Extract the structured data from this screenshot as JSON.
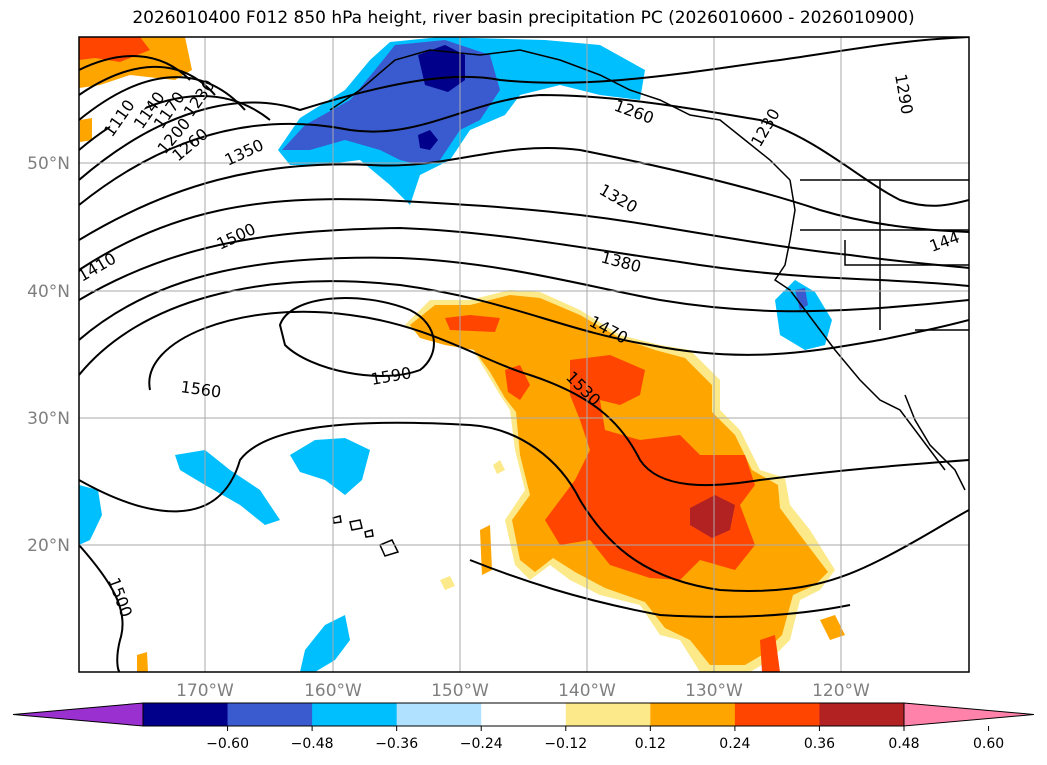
{
  "title": "2026010400 F012 850 hPa height, river basin precipitation PC (2026010600 - 2026010900)",
  "latitude_labels": [
    "50°N",
    "40°N",
    "30°N",
    "20°N"
  ],
  "longitude_labels": [
    "170°W",
    "160°W",
    "150°W",
    "140°W",
    "130°W",
    "120°W"
  ],
  "contour_labels": [
    "1110",
    "1140",
    "1170",
    "1200",
    "1230",
    "1260",
    "1350",
    "1500",
    "1410",
    "1260",
    "1320",
    "1380",
    "1470",
    "1530",
    "1590",
    "1560",
    "1500",
    "1290",
    "144",
    "1230"
  ],
  "colorbar": {
    "ticks": [
      "−0.60",
      "−0.48",
      "−0.36",
      "−0.24",
      "−0.12",
      "0.12",
      "0.24",
      "0.36",
      "0.48",
      "0.60"
    ],
    "colors": [
      "#9b30d0",
      "#00008b",
      "#3a5bcf",
      "#00bfff",
      "#b0e2ff",
      "#ffffff",
      "#fce98a",
      "#ffa500",
      "#ff4500",
      "#b22222",
      "#ff82ab"
    ]
  }
}
